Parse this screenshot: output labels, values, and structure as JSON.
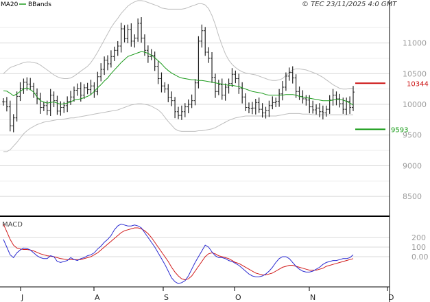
{
  "header": {
    "copyright": "© TEC 23/11/2025 4:0 GMT",
    "legend_ma": "MA20",
    "legend_bb": "BBands"
  },
  "colors": {
    "candles": "#222222",
    "ma": "#1a9a1a",
    "bbands": "#bdbdbd",
    "macd": "#2a2ad0",
    "signal": "#d01818",
    "resistance": "#cc1111",
    "support": "#119911",
    "grid": "#d8d8d8",
    "axis": "#000000"
  },
  "chart_data": [
    {
      "type": "candlestick",
      "ylim": [
        8200,
        11700
      ],
      "y_ticks": [
        {
          "value": 8500,
          "label": "8500"
        },
        {
          "value": 9000,
          "label": "9000"
        },
        {
          "value": 9500,
          "label": "9500"
        },
        {
          "value": 10000,
          "label": "10000"
        },
        {
          "value": 10500,
          "label": "10500"
        },
        {
          "value": 11000,
          "label": "11000"
        }
      ],
      "x_ticks": [
        "J",
        "A",
        "S",
        "O",
        "N",
        "D"
      ],
      "resistance": {
        "value": 10344,
        "label": "10344"
      },
      "support": {
        "value": 9593,
        "label": "9593"
      },
      "close": [
        10040,
        9960,
        9650,
        9780,
        10130,
        10260,
        10360,
        10330,
        10290,
        10180,
        10090,
        9950,
        9980,
        9900,
        10150,
        10060,
        9890,
        9950,
        9980,
        10050,
        10120,
        10230,
        10260,
        10150,
        10270,
        10240,
        10300,
        10210,
        10450,
        10570,
        10720,
        10660,
        10780,
        10880,
        10950,
        11230,
        11070,
        11220,
        11030,
        11080,
        11320,
        11080,
        10880,
        10780,
        10800,
        10620,
        10420,
        10300,
        10250,
        10110,
        10060,
        9880,
        9820,
        9880,
        9960,
        10000,
        10060,
        10350,
        11030,
        11200,
        10850,
        10750,
        10440,
        10210,
        10320,
        10150,
        10280,
        10340,
        10490,
        10420,
        10260,
        10120,
        9950,
        9930,
        9940,
        10030,
        9920,
        9860,
        9900,
        9980,
        10030,
        10050,
        10170,
        10280,
        10460,
        10520,
        10430,
        10210,
        10130,
        10090,
        10070,
        9960,
        9910,
        9940,
        9880,
        9860,
        9920,
        10070,
        10150,
        10090,
        10010,
        9920,
        10050,
        9950,
        10200
      ],
      "ma20": [
        10220,
        10215,
        10180,
        10140,
        10170,
        10210,
        10250,
        10270,
        10240,
        10200,
        10120,
        10060,
        10040,
        10020,
        10030,
        10040,
        10020,
        10000,
        10010,
        10020,
        10040,
        10070,
        10080,
        10090,
        10110,
        10130,
        10160,
        10210,
        10270,
        10320,
        10380,
        10430,
        10500,
        10560,
        10620,
        10680,
        10730,
        10780,
        10800,
        10820,
        10840,
        10860,
        10850,
        10830,
        10800,
        10760,
        10710,
        10660,
        10600,
        10550,
        10510,
        10480,
        10450,
        10430,
        10420,
        10410,
        10400,
        10400,
        10390,
        10390,
        10380,
        10370,
        10360,
        10350,
        10340,
        10330,
        10320,
        10310,
        10310,
        10300,
        10290,
        10270,
        10250,
        10230,
        10210,
        10200,
        10190,
        10180,
        10160,
        10150,
        10150,
        10150,
        10150,
        10150,
        10160,
        10160,
        10160,
        10150,
        10130,
        10120,
        10110,
        10100,
        10090,
        10080,
        10070,
        10060,
        10060,
        10060,
        10070,
        10080,
        10080,
        10070,
        10050,
        10020,
        9990
      ],
      "bb_upper": [
        10500,
        10550,
        10600,
        10620,
        10640,
        10660,
        10680,
        10690,
        10690,
        10680,
        10670,
        10640,
        10600,
        10560,
        10520,
        10480,
        10450,
        10430,
        10420,
        10420,
        10430,
        10460,
        10500,
        10540,
        10580,
        10620,
        10680,
        10760,
        10850,
        10950,
        11050,
        11150,
        11250,
        11330,
        11400,
        11480,
        11540,
        11600,
        11640,
        11670,
        11690,
        11690,
        11680,
        11660,
        11640,
        11620,
        11600,
        11570,
        11560,
        11550,
        11550,
        11550,
        11550,
        11550,
        11560,
        11580,
        11600,
        11620,
        11640,
        11640,
        11620,
        11560,
        11450,
        11300,
        11120,
        10960,
        10820,
        10720,
        10650,
        10600,
        10560,
        10530,
        10510,
        10500,
        10490,
        10480,
        10460,
        10440,
        10420,
        10400,
        10390,
        10390,
        10400,
        10420,
        10470,
        10520,
        10560,
        10580,
        10580,
        10570,
        10560,
        10540,
        10520,
        10500,
        10470,
        10440,
        10400,
        10360,
        10320,
        10290,
        10260,
        10250,
        10250,
        10260,
        10260
      ],
      "bb_lower": [
        9230,
        9230,
        9260,
        9320,
        9380,
        9450,
        9520,
        9570,
        9610,
        9640,
        9670,
        9690,
        9710,
        9720,
        9730,
        9740,
        9750,
        9750,
        9760,
        9770,
        9780,
        9780,
        9790,
        9800,
        9810,
        9820,
        9830,
        9840,
        9850,
        9860,
        9870,
        9880,
        9890,
        9900,
        9910,
        9930,
        9950,
        9970,
        9990,
        10000,
        10010,
        10010,
        10000,
        9990,
        9970,
        9940,
        9910,
        9860,
        9790,
        9720,
        9660,
        9600,
        9570,
        9560,
        9560,
        9560,
        9560,
        9560,
        9570,
        9570,
        9580,
        9590,
        9600,
        9620,
        9650,
        9680,
        9710,
        9740,
        9760,
        9780,
        9790,
        9800,
        9810,
        9810,
        9810,
        9810,
        9810,
        9810,
        9810,
        9810,
        9810,
        9810,
        9820,
        9830,
        9840,
        9850,
        9850,
        9850,
        9850,
        9840,
        9840,
        9840,
        9830,
        9830,
        9830,
        9830,
        9830,
        9830,
        9830,
        9830,
        9830,
        9830,
        9830,
        9830,
        9830
      ]
    },
    {
      "type": "line",
      "title": "MACD",
      "ylim": [
        -300,
        400
      ],
      "y_ticks": [
        {
          "value": 0,
          "label": "0.00"
        },
        {
          "value": 100,
          "label": "100"
        },
        {
          "value": 200,
          "label": "200"
        }
      ],
      "series": [
        {
          "key": "macd",
          "values": [
            180,
            100,
            20,
            -10,
            40,
            70,
            90,
            85,
            70,
            40,
            10,
            -10,
            -20,
            -20,
            10,
            0,
            -50,
            -60,
            -50,
            -40,
            -10,
            -30,
            -40,
            -20,
            -10,
            10,
            20,
            40,
            80,
            110,
            150,
            180,
            220,
            280,
            320,
            340,
            330,
            320,
            320,
            330,
            320,
            300,
            250,
            200,
            150,
            100,
            40,
            -20,
            -80,
            -150,
            -220,
            -260,
            -280,
            -270,
            -250,
            -200,
            -130,
            -60,
            0,
            60,
            120,
            100,
            50,
            10,
            -10,
            -10,
            -20,
            -40,
            -50,
            -70,
            -90,
            -120,
            -150,
            -180,
            -200,
            -210,
            -210,
            -200,
            -180,
            -150,
            -110,
            -60,
            -20,
            0,
            0,
            -20,
            -60,
            -100,
            -130,
            -150,
            -160,
            -160,
            -150,
            -130,
            -110,
            -80,
            -60,
            -50,
            -40,
            -40,
            -30,
            -20,
            -20,
            -10,
            20
          ]
        },
        {
          "key": "signal",
          "values": [
            340,
            260,
            180,
            120,
            90,
            80,
            75,
            75,
            70,
            60,
            45,
            30,
            20,
            10,
            5,
            0,
            -10,
            -20,
            -25,
            -30,
            -30,
            -30,
            -30,
            -30,
            -20,
            -10,
            0,
            20,
            40,
            70,
            100,
            130,
            160,
            190,
            220,
            250,
            270,
            280,
            290,
            300,
            300,
            290,
            270,
            240,
            200,
            150,
            100,
            50,
            0,
            -50,
            -110,
            -160,
            -200,
            -230,
            -240,
            -230,
            -200,
            -150,
            -100,
            -50,
            0,
            30,
            40,
            30,
            10,
            0,
            -10,
            -20,
            -40,
            -60,
            -70,
            -90,
            -110,
            -130,
            -150,
            -170,
            -180,
            -190,
            -190,
            -180,
            -170,
            -150,
            -130,
            -110,
            -100,
            -90,
            -90,
            -100,
            -110,
            -120,
            -130,
            -140,
            -140,
            -140,
            -130,
            -120,
            -100,
            -90,
            -80,
            -70,
            -60,
            -50,
            -40,
            -30,
            -20
          ]
        }
      ]
    }
  ]
}
